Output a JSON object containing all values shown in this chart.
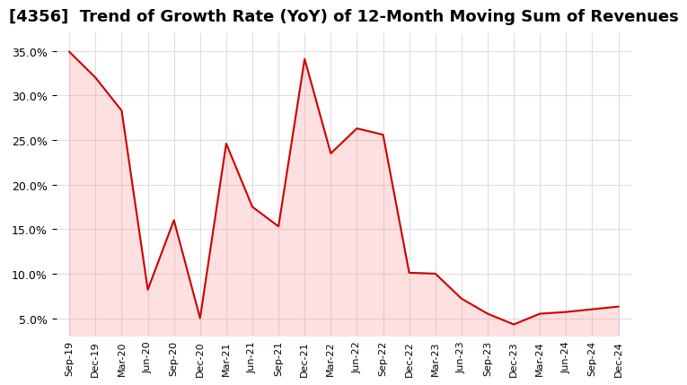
{
  "title": "[4356]  Trend of Growth Rate (YoY) of 12-Month Moving Sum of Revenues",
  "title_fontsize": 13,
  "background_color": "#ffffff",
  "line_color": "#cc0000",
  "fill_color": "#ff9999",
  "grid_color": "#dddddd",
  "ylim": [
    0.03,
    0.37
  ],
  "yticks": [
    0.05,
    0.1,
    0.15,
    0.2,
    0.25,
    0.3,
    0.35
  ],
  "x_labels": [
    "Sep-19",
    "Dec-19",
    "Mar-20",
    "Jun-20",
    "Sep-20",
    "Dec-20",
    "Mar-21",
    "Jun-21",
    "Sep-21",
    "Dec-21",
    "Mar-22",
    "Jun-22",
    "Sep-22",
    "Dec-22",
    "Mar-23",
    "Jun-23",
    "Sep-23",
    "Dec-23",
    "Mar-24",
    "Jun-24",
    "Sep-24",
    "Dec-24"
  ],
  "values": [
    0.349,
    0.32,
    0.283,
    0.082,
    0.16,
    0.05,
    0.246,
    0.175,
    0.153,
    0.341,
    0.235,
    0.263,
    0.256,
    0.101,
    0.1,
    0.072,
    0.055,
    0.043,
    0.055,
    0.057,
    0.06,
    0.063
  ]
}
